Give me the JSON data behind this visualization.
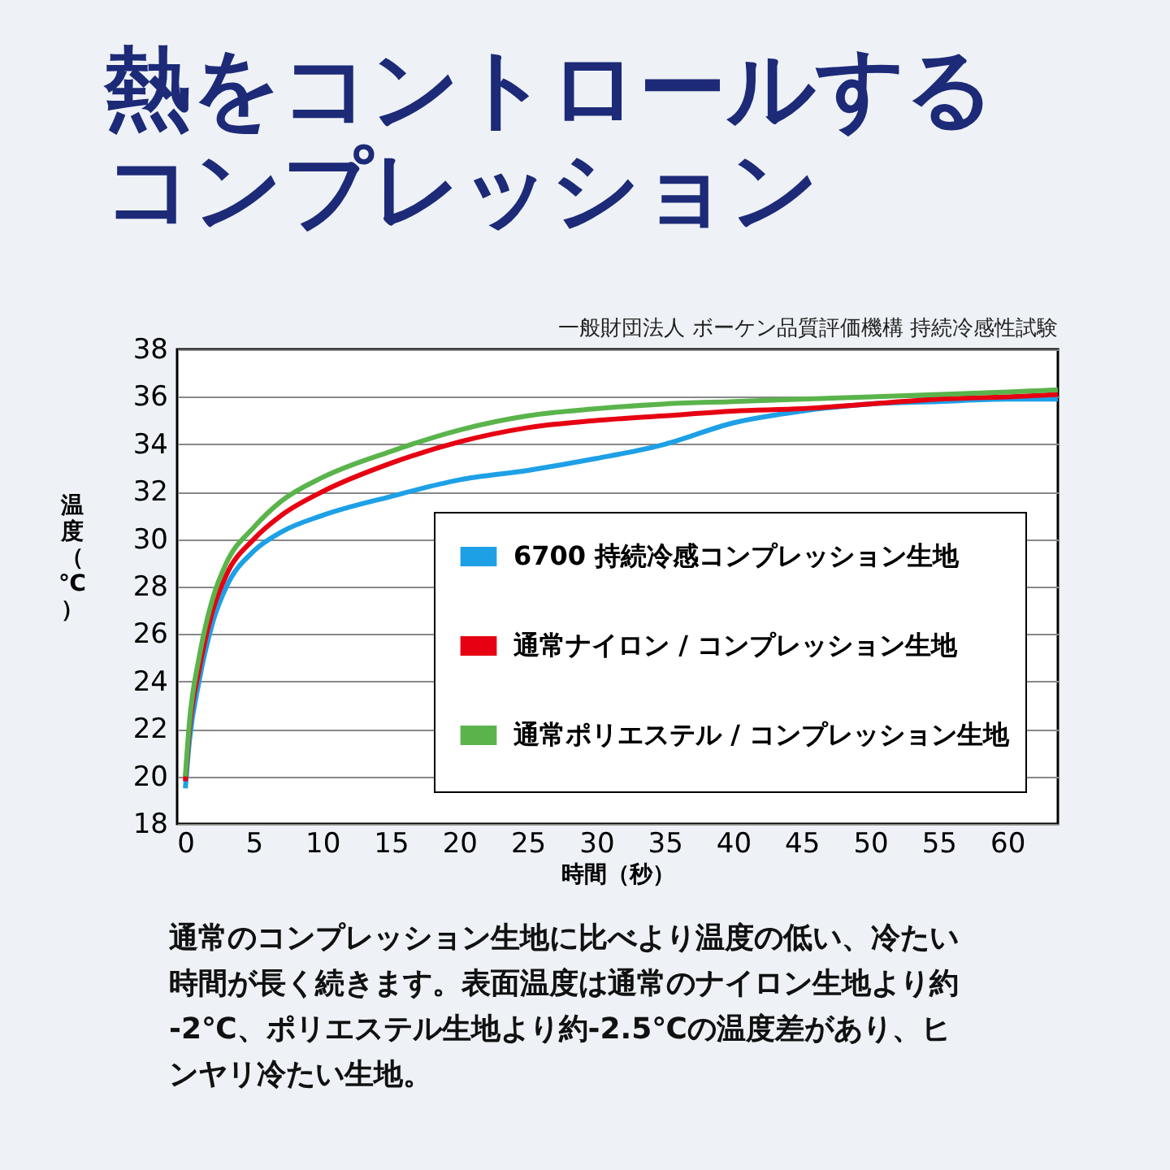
{
  "chart_data": {
    "type": "line",
    "title": "熱をコントロールするコンプレッション",
    "subtitle": "一般財団法人 ボーケン品質評価機構 持続冷感性試験",
    "xlabel": "時間（秒）",
    "ylabel": "温度（℃）",
    "annotations": [
      "通常のコンプレッション生地に比べより温度の低い、冷たい時間が長く続きます。表面温度は通常のナイロン生地より約-2℃、ポリエステル生地より約-2.5℃の温度差があり、ヒンヤリ冷たい生地。"
    ],
    "xlim": [
      -0.6,
      63.7
    ],
    "xticks": [
      0,
      5,
      10,
      15,
      20,
      25,
      30,
      35,
      40,
      45,
      50,
      55,
      60
    ],
    "ylim": [
      18,
      38
    ],
    "yticks": [
      18,
      20,
      22,
      24,
      26,
      28,
      30,
      32,
      34,
      36,
      38
    ],
    "grid": "y",
    "legend": "bottom right",
    "line_style": "solid",
    "marker": "none",
    "series": [
      {
        "name": "6700 持続冷感コンプレッション生地",
        "color": "#1ea0e6",
        "x": [
          0,
          0.3,
          1,
          2,
          3,
          5,
          7,
          10,
          15,
          20,
          25,
          30,
          35,
          40,
          45,
          50,
          55,
          60,
          63.7
        ],
        "values": [
          19.5,
          21.5,
          24,
          26.5,
          28,
          29.5,
          30.3,
          31.0,
          31.8,
          32.5,
          32.9,
          33.4,
          34.0,
          34.9,
          35.4,
          35.7,
          35.8,
          35.9,
          35.9
        ]
      },
      {
        "name": "通常ナイロン / コンプレッション生地",
        "color": "#e60012",
        "x": [
          0,
          0.3,
          1,
          2,
          3,
          5,
          7,
          10,
          15,
          20,
          25,
          30,
          35,
          40,
          45,
          50,
          55,
          60,
          63.7
        ],
        "values": [
          19.8,
          22,
          24.5,
          27,
          28.5,
          30.0,
          31.0,
          32.0,
          33.2,
          34.1,
          34.7,
          35.0,
          35.2,
          35.4,
          35.5,
          35.7,
          35.9,
          36.0,
          36.1
        ]
      },
      {
        "name": "通常ポリエステル / コンプレッション生地",
        "color": "#5ab44b",
        "x": [
          0,
          0.3,
          1,
          2,
          3,
          5,
          7,
          10,
          15,
          20,
          25,
          30,
          35,
          40,
          45,
          50,
          55,
          60,
          63.7
        ],
        "values": [
          20.0,
          22.3,
          25,
          27.5,
          29,
          30.5,
          31.6,
          32.6,
          33.7,
          34.6,
          35.2,
          35.5,
          35.7,
          35.8,
          35.9,
          36.0,
          36.1,
          36.2,
          36.3
        ]
      }
    ]
  }
}
